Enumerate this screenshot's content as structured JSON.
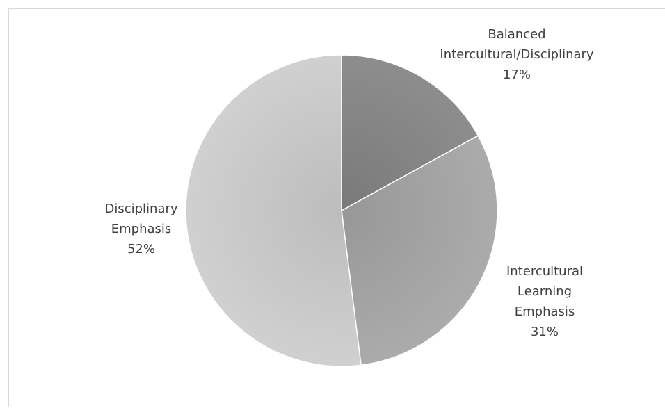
{
  "chart_data": {
    "type": "pie",
    "slices": [
      {
        "label_lines": [
          "Balanced",
          "Intercultural/Disciplinary"
        ],
        "value": 17,
        "value_label": "17%",
        "color": "#858585"
      },
      {
        "label_lines": [
          "Intercultural",
          "Learning",
          "Emphasis"
        ],
        "value": 31,
        "value_label": "31%",
        "color": "#a3a3a3"
      },
      {
        "label_lines": [
          "Disciplinary",
          "Emphasis"
        ],
        "value": 52,
        "value_label": "52%",
        "color": "#c8c8c8"
      }
    ],
    "start_angle_deg": 0,
    "direction": "clockwise",
    "legend": "none",
    "data_labels": "outside"
  }
}
